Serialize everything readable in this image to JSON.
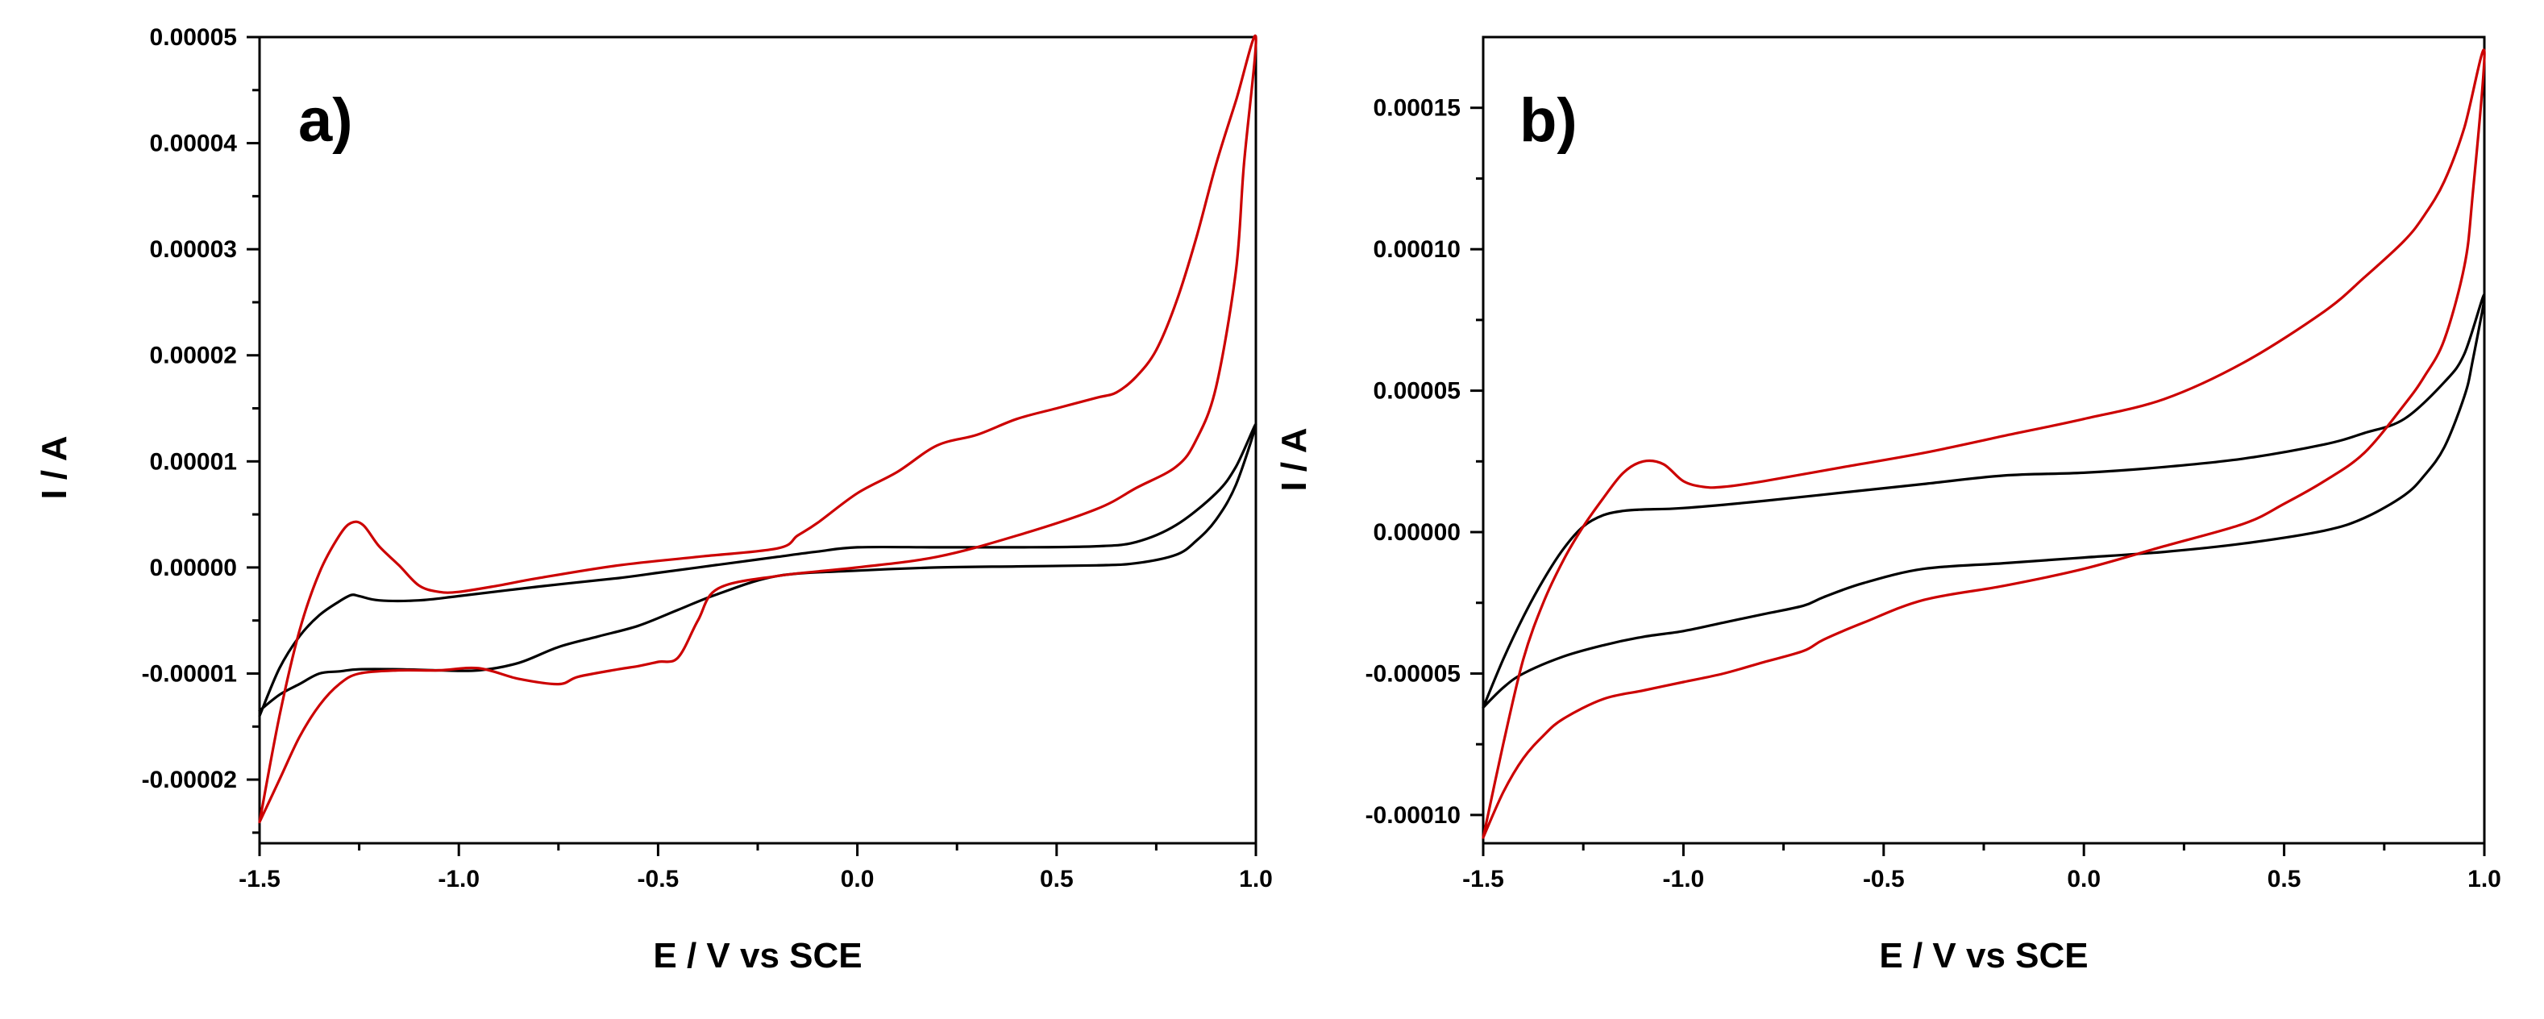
{
  "figure": {
    "colors": {
      "black_series": "#000000",
      "red_series": "#cc0000"
    }
  },
  "chart_data": [
    {
      "type": "line",
      "panel_label": "a)",
      "xlabel": "E / V vs SCE",
      "ylabel": "I / A",
      "xlim": [
        -1.5,
        1.0
      ],
      "ylim": [
        -2.6e-05,
        5e-05
      ],
      "xticks": [
        -1.5,
        -1.0,
        -0.5,
        0.0,
        0.5,
        1.0
      ],
      "xtick_labels": [
        "-1.5",
        "-1.0",
        "-0.5",
        "0.0",
        "0.5",
        "1.0"
      ],
      "yticks": [
        -2e-05,
        -1e-05,
        0.0,
        1e-05,
        2e-05,
        3e-05,
        4e-05,
        5e-05
      ],
      "ytick_labels": [
        "-0.00002",
        "-0.00001",
        "0.00000",
        "0.00001",
        "0.00002",
        "0.00003",
        "0.00004",
        "0.00005"
      ],
      "series": [
        {
          "name": "black",
          "color": "#000000",
          "x": [
            -1.5,
            -1.45,
            -1.4,
            -1.35,
            -1.3,
            -1.27,
            -1.25,
            -1.2,
            -1.1,
            -1.0,
            -0.8,
            -0.6,
            -0.5,
            -0.4,
            -0.3,
            -0.2,
            -0.1,
            0.0,
            0.2,
            0.4,
            0.6,
            0.7,
            0.8,
            0.9,
            0.95,
            1.0,
            0.95,
            0.9,
            0.85,
            0.8,
            0.7,
            0.6,
            0.4,
            0.2,
            0.0,
            -0.2,
            -0.35,
            -0.45,
            -0.55,
            -0.65,
            -0.75,
            -0.85,
            -0.95,
            -1.05,
            -1.15,
            -1.25,
            -1.3,
            -1.35,
            -1.4,
            -1.45,
            -1.5
          ],
          "y": [
            -1.4e-05,
            -9.5e-06,
            -6.5e-06,
            -4.5e-06,
            -3.2e-06,
            -2.6e-06,
            -2.7e-06,
            -3.1e-06,
            -3.1e-06,
            -2.7e-06,
            -1.8e-06,
            -1e-06,
            -5e-07,
            0.0,
            5e-07,
            1e-06,
            1.5e-06,
            1.9e-06,
            1.9e-06,
            1.9e-06,
            2e-06,
            2.4e-06,
            4e-06,
            7e-06,
            9.5e-06,
            1.35e-05,
            7.8e-06,
            4.5e-06,
            2.5e-06,
            1.2e-06,
            4e-07,
            2e-07,
            1e-07,
            0.0,
            -3e-07,
            -8e-07,
            -2.5e-06,
            -4e-06,
            -5.5e-06,
            -6.5e-06,
            -7.5e-06,
            -9e-06,
            -9.7e-06,
            -9.7e-06,
            -9.6e-06,
            -9.6e-06,
            -9.8e-06,
            -1e-05,
            -1.1e-05,
            -1.2e-05,
            -1.35e-05
          ]
        },
        {
          "name": "red",
          "color": "#cc0000",
          "x": [
            -1.5,
            -1.45,
            -1.4,
            -1.35,
            -1.3,
            -1.27,
            -1.24,
            -1.2,
            -1.15,
            -1.1,
            -1.05,
            -1.0,
            -0.9,
            -0.8,
            -0.6,
            -0.4,
            -0.2,
            -0.15,
            -0.1,
            0.0,
            0.1,
            0.2,
            0.3,
            0.4,
            0.5,
            0.6,
            0.65,
            0.7,
            0.75,
            0.8,
            0.85,
            0.9,
            0.95,
            1.0,
            0.97,
            0.95,
            0.9,
            0.85,
            0.8,
            0.7,
            0.6,
            0.4,
            0.2,
            0.0,
            -0.2,
            -0.35,
            -0.4,
            -0.45,
            -0.5,
            -0.55,
            -0.6,
            -0.7,
            -0.75,
            -0.85,
            -0.95,
            -1.05,
            -1.15,
            -1.25,
            -1.3,
            -1.35,
            -1.4,
            -1.45,
            -1.5
          ],
          "y": [
            -2.4e-05,
            -1.4e-05,
            -6e-06,
            -5e-07,
            3e-06,
            4.2e-06,
            4e-06,
            2e-06,
            2e-07,
            -1.7e-06,
            -2.3e-06,
            -2.3e-06,
            -1.7e-06,
            -1e-06,
            2e-07,
            1e-06,
            1.8e-06,
            3e-06,
            4.2e-06,
            7e-06,
            9e-06,
            1.15e-05,
            1.25e-05,
            1.4e-05,
            1.5e-05,
            1.6e-05,
            1.65e-05,
            1.8e-05,
            2.05e-05,
            2.5e-05,
            3.1e-05,
            3.8e-05,
            4.4e-05,
            5e-05,
            3.8e-05,
            2.8e-05,
            1.7e-05,
            1.2e-05,
            9.5e-06,
            7.5e-06,
            5.5e-06,
            3e-06,
            1e-06,
            0.0,
            -8e-07,
            -2e-06,
            -5e-06,
            -8.5e-06,
            -8.9e-06,
            -9.3e-06,
            -9.6e-06,
            -1.03e-05,
            -1.1e-05,
            -1.05e-05,
            -9.5e-06,
            -9.7e-06,
            -9.7e-06,
            -1e-05,
            -1.1e-05,
            -1.3e-05,
            -1.6e-05,
            -2e-05,
            -2.4e-05
          ]
        }
      ]
    },
    {
      "type": "line",
      "panel_label": "b)",
      "xlabel": "E / V vs SCE",
      "ylabel": "I / A",
      "xlim": [
        -1.5,
        1.0
      ],
      "ylim": [
        -0.00011,
        0.000175
      ],
      "xticks": [
        -1.5,
        -1.0,
        -0.5,
        0.0,
        0.5,
        1.0
      ],
      "xtick_labels": [
        "-1.5",
        "-1.0",
        "-0.5",
        "0.0",
        "0.5",
        "1.0"
      ],
      "yticks": [
        -0.0001,
        -5e-05,
        0.0,
        5e-05,
        0.0001,
        0.00015
      ],
      "ytick_labels": [
        "-0.00010",
        "-0.00005",
        "0.00000",
        "0.00005",
        "0.00010",
        "0.00015"
      ],
      "series": [
        {
          "name": "black",
          "color": "#000000",
          "x": [
            -1.5,
            -1.45,
            -1.4,
            -1.35,
            -1.3,
            -1.25,
            -1.2,
            -1.15,
            -1.1,
            -1.0,
            -0.8,
            -0.6,
            -0.4,
            -0.2,
            0.0,
            0.2,
            0.4,
            0.6,
            0.7,
            0.8,
            0.9,
            0.95,
            1.0,
            0.97,
            0.95,
            0.9,
            0.85,
            0.8,
            0.7,
            0.6,
            0.4,
            0.2,
            0.0,
            -0.2,
            -0.4,
            -0.55,
            -0.65,
            -0.7,
            -0.8,
            -0.9,
            -1.0,
            -1.1,
            -1.2,
            -1.3,
            -1.4,
            -1.45,
            -1.5
          ],
          "y": [
            -6.2e-05,
            -4.5e-05,
            -3e-05,
            -1.7e-05,
            -6e-06,
            2e-06,
            6e-06,
            7.5e-06,
            8e-06,
            8.5e-06,
            1.1e-05,
            1.4e-05,
            1.7e-05,
            2e-05,
            2.1e-05,
            2.3e-05,
            2.6e-05,
            3.1e-05,
            3.5e-05,
            4e-05,
            5.3e-05,
            6.3e-05,
            8.4e-05,
            6e-05,
            4.8e-05,
            3e-05,
            2e-05,
            1.3e-05,
            5e-06,
            5e-07,
            -4e-06,
            -7e-06,
            -9e-06,
            -1.1e-05,
            -1.3e-05,
            -1.8e-05,
            -2.3e-05,
            -2.6e-05,
            -2.9e-05,
            -3.2e-05,
            -3.5e-05,
            -3.7e-05,
            -4e-05,
            -4.4e-05,
            -5e-05,
            -5.5e-05,
            -6.2e-05
          ]
        },
        {
          "name": "red",
          "color": "#cc0000",
          "x": [
            -1.5,
            -1.45,
            -1.4,
            -1.35,
            -1.3,
            -1.25,
            -1.2,
            -1.15,
            -1.1,
            -1.05,
            -1.0,
            -0.95,
            -0.9,
            -0.8,
            -0.6,
            -0.4,
            -0.2,
            0.0,
            0.2,
            0.4,
            0.6,
            0.7,
            0.8,
            0.85,
            0.9,
            0.95,
            1.0,
            0.97,
            0.95,
            0.9,
            0.85,
            0.8,
            0.7,
            0.6,
            0.5,
            0.4,
            0.2,
            0.0,
            -0.2,
            -0.4,
            -0.55,
            -0.65,
            -0.7,
            -0.8,
            -0.9,
            -1.0,
            -1.1,
            -1.2,
            -1.3,
            -1.35,
            -1.4,
            -1.45,
            -1.5
          ],
          "y": [
            -0.000108,
            -7.5e-05,
            -4.5e-05,
            -2.5e-05,
            -1e-05,
            2e-06,
            1.2e-05,
            2.1e-05,
            2.5e-05,
            2.4e-05,
            1.8e-05,
            1.6e-05,
            1.6e-05,
            1.8e-05,
            2.3e-05,
            2.8e-05,
            3.4e-05,
            4e-05,
            4.7e-05,
            6e-05,
            7.8e-05,
            9e-05,
            0.000103,
            0.000112,
            0.000124,
            0.000143,
            0.00017,
            0.000118,
            9.4e-05,
            6.8e-05,
            5.5e-05,
            4.5e-05,
            2.8e-05,
            1.8e-05,
            1e-05,
            3e-06,
            -5e-06,
            -1.3e-05,
            -1.9e-05,
            -2.4e-05,
            -3.2e-05,
            -3.8e-05,
            -4.2e-05,
            -4.6e-05,
            -5e-05,
            -5.3e-05,
            -5.6e-05,
            -5.9e-05,
            -6.6e-05,
            -7.2e-05,
            -8e-05,
            -9.2e-05,
            -0.000108
          ]
        }
      ]
    }
  ]
}
